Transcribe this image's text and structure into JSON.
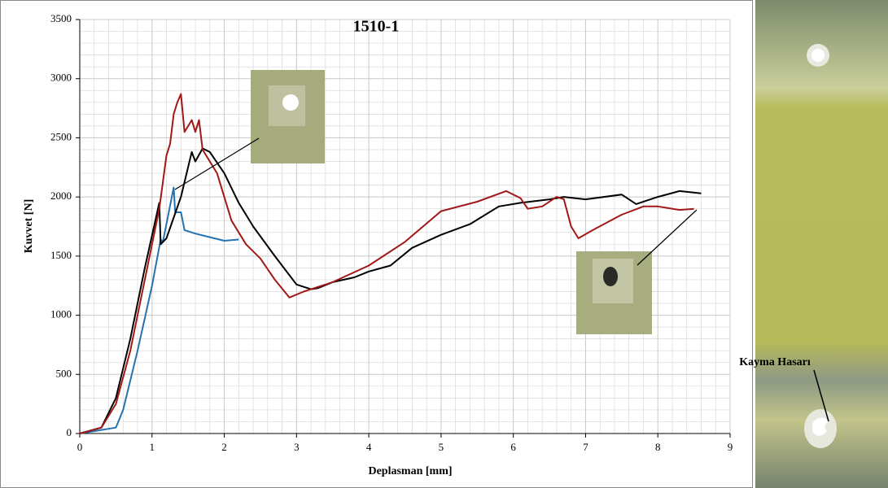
{
  "chart_data": {
    "type": "line",
    "title": "1510-1",
    "x_label": "Deplasman [mm]",
    "y_label": "Kuvvet [N]",
    "annotation": "Kayma Hasarı",
    "xlim": [
      0,
      9
    ],
    "xticks": [
      0,
      1,
      2,
      3,
      4,
      5,
      6,
      7,
      8,
      9
    ],
    "ylim": [
      0,
      3500
    ],
    "yticks": [
      0,
      500,
      1000,
      1500,
      2000,
      2500,
      3000,
      3500
    ],
    "grid": true,
    "series": [
      {
        "color": "#2472b0",
        "x": [
          0,
          0.5,
          0.6,
          0.8,
          1.0,
          1.12,
          1.15,
          1.3,
          1.32,
          1.4,
          1.45,
          1.6,
          1.8,
          2.0,
          2.2
        ],
        "values": [
          0,
          50,
          200,
          700,
          1250,
          1640,
          1620,
          2080,
          1870,
          1870,
          1720,
          1690,
          1660,
          1630,
          1640
        ]
      },
      {
        "color": "#000000",
        "x": [
          0,
          0.3,
          0.5,
          0.7,
          0.9,
          1.1,
          1.12,
          1.2,
          1.4,
          1.55,
          1.6,
          1.7,
          1.8,
          2.0,
          2.2,
          2.4,
          2.7,
          3.0,
          3.2,
          3.3,
          3.5,
          3.8,
          4.0,
          4.3,
          4.6,
          5.0,
          5.4,
          5.8,
          6.1,
          6.5,
          6.7,
          7.0,
          7.5,
          7.7,
          8.0,
          8.3,
          8.6
        ],
        "values": [
          0,
          50,
          300,
          800,
          1400,
          1950,
          1600,
          1650,
          2000,
          2380,
          2300,
          2410,
          2380,
          2200,
          1950,
          1750,
          1500,
          1260,
          1220,
          1230,
          1280,
          1320,
          1370,
          1420,
          1570,
          1680,
          1770,
          1920,
          1950,
          1980,
          2000,
          1980,
          2020,
          1940,
          2000,
          2050,
          2030
        ]
      },
      {
        "color": "#a01818",
        "x": [
          0,
          0.3,
          0.5,
          0.7,
          0.9,
          1.1,
          1.2,
          1.25,
          1.3,
          1.35,
          1.4,
          1.45,
          1.5,
          1.55,
          1.6,
          1.65,
          1.7,
          1.9,
          2.1,
          2.3,
          2.5,
          2.7,
          2.9,
          3.1,
          3.5,
          4.0,
          4.5,
          5.0,
          5.5,
          5.9,
          6.1,
          6.2,
          6.4,
          6.6,
          6.7,
          6.8,
          6.9,
          7.1,
          7.5,
          7.8,
          8.0,
          8.3,
          8.5
        ],
        "values": [
          0,
          50,
          250,
          700,
          1300,
          1900,
          2350,
          2450,
          2700,
          2800,
          2870,
          2550,
          2600,
          2650,
          2550,
          2650,
          2400,
          2200,
          1800,
          1600,
          1480,
          1300,
          1150,
          1200,
          1280,
          1420,
          1620,
          1880,
          1960,
          2050,
          1990,
          1900,
          1920,
          2000,
          1980,
          1750,
          1650,
          1720,
          1850,
          1920,
          1920,
          1890,
          1900
        ]
      }
    ]
  }
}
